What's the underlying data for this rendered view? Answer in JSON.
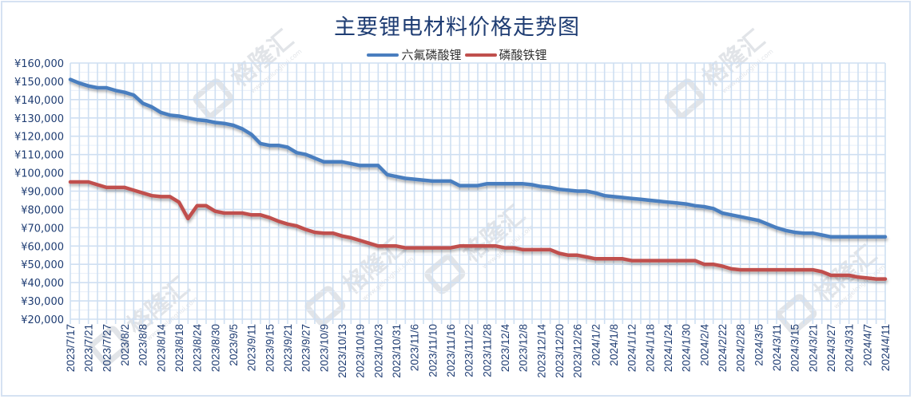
{
  "title": "主要锂电材料价格走势图",
  "legend": [
    {
      "label": "六氟磷酸锂",
      "color": "#4a7ebf"
    },
    {
      "label": "磷酸铁锂",
      "color": "#c0504d"
    }
  ],
  "watermark": {
    "text": "格隆汇",
    "url": "www.gelonghui.com"
  },
  "chart_data": {
    "type": "line",
    "title": "主要锂电材料价格走势图",
    "xlabel": "",
    "ylabel": "",
    "ylim": [
      20000,
      160000
    ],
    "yticks": [
      20000,
      30000,
      40000,
      50000,
      60000,
      70000,
      80000,
      90000,
      100000,
      110000,
      120000,
      130000,
      140000,
      150000,
      160000
    ],
    "ytick_labels": [
      "¥20,000",
      "¥30,000",
      "¥40,000",
      "¥50,000",
      "¥60,000",
      "¥70,000",
      "¥80,000",
      "¥90,000",
      "¥100,000",
      "¥110,000",
      "¥120,000",
      "¥130,000",
      "¥140,000",
      "¥150,000",
      "¥160,000"
    ],
    "grid": true,
    "legend_position": "top",
    "x_tick_labels": [
      "2023/7/17",
      "2023/7/21",
      "2023/7/27",
      "2023/8/2",
      "2023/8/8",
      "2023/8/14",
      "2023/8/18",
      "2023/8/24",
      "2023/8/30",
      "2023/9/5",
      "2023/9/11",
      "2023/9/15",
      "2023/9/21",
      "2023/9/27",
      "2023/10/9",
      "2023/10/13",
      "2023/10/19",
      "2023/10/23",
      "2023/10/31",
      "2023/11/6",
      "2023/11/10",
      "2023/11/16",
      "2023/11/22",
      "2023/11/28",
      "2023/12/4",
      "2023/12/8",
      "2023/12/14",
      "2023/12/20",
      "2023/12/26",
      "2024/1/2",
      "2024/1/8",
      "2024/1/12",
      "2024/1/18",
      "2024/1/24",
      "2024/1/30",
      "2024/2/4",
      "2024/2/22",
      "2024/2/28",
      "2024/3/5",
      "2024/3/11",
      "2024/3/15",
      "2024/3/21",
      "2024/3/27",
      "2024/3/31",
      "2024/4/7",
      "2024/4/11"
    ],
    "n_points": 91,
    "series": [
      {
        "name": "六氟磷酸锂",
        "color": "#4a7ebf",
        "values": [
          151000,
          149000,
          147500,
          146500,
          146500,
          145000,
          144000,
          142500,
          138000,
          136000,
          133000,
          131500,
          131000,
          130000,
          129000,
          128500,
          127500,
          127000,
          126000,
          124000,
          121000,
          116000,
          115000,
          115000,
          114000,
          111000,
          110000,
          108000,
          106000,
          106000,
          106000,
          105000,
          104000,
          104000,
          104000,
          99000,
          98000,
          97000,
          96500,
          96000,
          95500,
          95500,
          95500,
          93000,
          93000,
          93000,
          94000,
          94000,
          94000,
          94000,
          94000,
          93500,
          92500,
          92000,
          91000,
          90500,
          90000,
          90000,
          89000,
          87500,
          87000,
          86500,
          86000,
          85500,
          85000,
          84500,
          84000,
          83500,
          83000,
          82000,
          81500,
          80500,
          78000,
          77000,
          76000,
          75000,
          74000,
          72000,
          70000,
          68500,
          67500,
          67000,
          67000,
          66000,
          65000,
          65000,
          65000,
          65000,
          65000,
          65000,
          65000
        ]
      },
      {
        "name": "磷酸铁锂",
        "color": "#c0504d",
        "values": [
          95000,
          95000,
          95000,
          93500,
          92000,
          92000,
          92000,
          90500,
          89000,
          87500,
          87000,
          87000,
          84000,
          75000,
          82000,
          82000,
          79000,
          78000,
          78000,
          78000,
          77000,
          77000,
          75500,
          73500,
          72000,
          71000,
          69000,
          67500,
          67000,
          67000,
          65500,
          64500,
          63000,
          61500,
          60000,
          60000,
          60000,
          59000,
          59000,
          59000,
          59000,
          59000,
          59000,
          60000,
          60000,
          60000,
          60000,
          60000,
          59000,
          59000,
          58000,
          58000,
          58000,
          58000,
          56000,
          55000,
          55000,
          54000,
          53000,
          53000,
          53000,
          53000,
          52000,
          52000,
          52000,
          52000,
          52000,
          52000,
          52000,
          52000,
          50000,
          50000,
          49000,
          47500,
          47000,
          47000,
          47000,
          47000,
          47000,
          47000,
          47000,
          47000,
          47000,
          46000,
          44000,
          44000,
          44000,
          43000,
          42500,
          42000,
          42000
        ]
      }
    ]
  }
}
